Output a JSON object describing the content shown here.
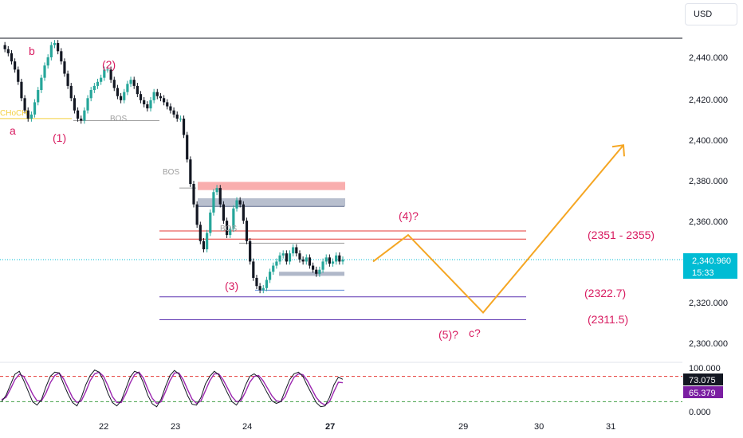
{
  "currency_button": "USD",
  "price_axis": {
    "ticks": [
      "2,440.000",
      "2,420.000",
      "2,400.000",
      "2,380.000",
      "2,360.000",
      "2,320.000",
      "2,300.000"
    ],
    "current_price": "2,340.960",
    "countdown": "15:33"
  },
  "time_axis": {
    "ticks": [
      "22",
      "23",
      "24",
      "27",
      "29",
      "30",
      "31"
    ]
  },
  "oscillator_axis": {
    "ticks": [
      "100.000",
      "0.000"
    ],
    "value_k": "73.075",
    "value_d": "65.379"
  },
  "wave_labels": {
    "a": "a",
    "b": "b",
    "w1": "(1)",
    "w2": "(2)",
    "w3": "(3)",
    "w4": "(4)?",
    "w5": "(5)?",
    "c": "c?"
  },
  "zone_labels": {
    "upper": "(2351 - 2355)",
    "mid": "(2322.7)",
    "lower": "(2311.5)"
  },
  "struct_labels": {
    "choch": "CHoCH",
    "bos1": "BOS",
    "bos2": "BOS",
    "bos3": "BOS"
  },
  "colors": {
    "bullish": "#26a69a",
    "bearish": "#131722",
    "wave": "#d81b60",
    "projection": "#f5a623",
    "resistance": "#e53935",
    "support": "#5e35b1",
    "current_price": "#00bcd4",
    "stoch_k": "#131722",
    "stoch_d": "#9c27b0",
    "choch": "#f4d03f"
  },
  "chart_data": {
    "type": "line",
    "y_range": [
      2294,
      2452
    ],
    "price_series": [
      [
        2446,
        2444,
        2442,
        2438,
        2434,
        2428,
        2420,
        2414,
        2410,
        2412,
        2418,
        2424,
        2430,
        2436,
        2440,
        2446,
        2447,
        2443,
        2438,
        2432,
        2426,
        2420,
        2414,
        2410,
        2409,
        2414,
        2420,
        2424,
        2426,
        2428,
        2430,
        2434,
        2434,
        2429,
        2425,
        2421,
        2419,
        2423,
        2427,
        2429,
        2426,
        2422,
        2419,
        2417,
        2415,
        2419,
        2423,
        2421,
        2420,
        2418,
        2416,
        2414,
        2412,
        2410
      ],
      [
        2410,
        2402,
        2390,
        2378,
        2368,
        2358,
        2350,
        2346,
        2354,
        2364,
        2374,
        2376,
        2368,
        2360,
        2353,
        2356,
        2366,
        2370,
        2368,
        2360,
        2350,
        2340,
        2332,
        2328,
        2326,
        2327,
        2331,
        2335,
        2338,
        2340,
        2343,
        2344,
        2340,
        2344,
        2347,
        2344,
        2341,
        2340,
        2342,
        2338,
        2336,
        2334,
        2336,
        2340,
        2342,
        2339,
        2340,
        2343,
        2340,
        2341
      ]
    ],
    "projection": [
      {
        "date": "Jun 27",
        "price": 2340
      },
      {
        "date": "Jun 28",
        "price": 2353
      },
      {
        "date": "Jun 29",
        "price": 2315
      },
      {
        "date": "Jul 1",
        "price": 2397
      }
    ],
    "levels": {
      "red_zone": [
        2351,
        2355
      ],
      "support_1": 2322.7,
      "support_2": 2311.5
    },
    "stochastic": {
      "k": [
        20,
        35,
        60,
        85,
        92,
        70,
        45,
        20,
        12,
        25,
        55,
        80,
        90,
        88,
        62,
        38,
        18,
        10,
        30,
        60,
        82,
        95,
        90,
        70,
        40,
        18,
        10,
        22,
        50,
        78,
        92,
        88,
        65,
        35,
        15,
        8,
        26,
        56,
        82,
        94,
        86,
        60,
        34,
        14,
        12,
        30,
        62,
        80,
        92,
        84,
        62,
        40,
        20,
        12,
        28,
        58,
        80,
        86,
        78,
        60,
        40,
        22,
        16,
        20,
        46,
        72,
        86,
        90,
        80,
        58,
        38,
        18,
        8,
        10,
        30,
        60,
        78,
        73
      ],
      "d": [
        25,
        30,
        50,
        72,
        85,
        80,
        60,
        38,
        22,
        22,
        40,
        65,
        82,
        88,
        74,
        52,
        30,
        18,
        22,
        44,
        70,
        86,
        90,
        80,
        58,
        32,
        18,
        18,
        38,
        64,
        84,
        90,
        76,
        50,
        28,
        16,
        20,
        44,
        70,
        88,
        88,
        72,
        48,
        26,
        16,
        22,
        46,
        70,
        86,
        86,
        72,
        52,
        32,
        20,
        22,
        42,
        66,
        80,
        82,
        70,
        52,
        34,
        22,
        20,
        32,
        58,
        78,
        86,
        84,
        70,
        50,
        30,
        18,
        12,
        20,
        44,
        66,
        65
      ]
    },
    "stochastic_levels": [
      80,
      20
    ]
  }
}
